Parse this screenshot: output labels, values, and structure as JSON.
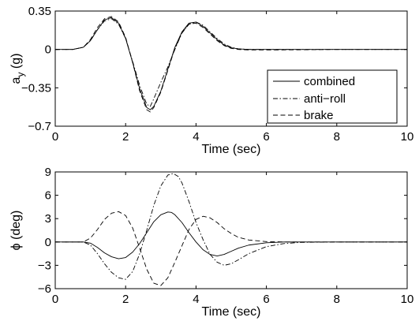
{
  "chart_data": [
    {
      "type": "line",
      "xlabel": "Time (sec)",
      "ylabel_main": "a",
      "ylabel_sub": "y",
      "ylabel_suffix": " (g)",
      "xlim": [
        0,
        10
      ],
      "ylim": [
        -0.7,
        0.35
      ],
      "xticks": [
        0,
        2,
        4,
        6,
        8,
        10
      ],
      "yticks": [
        0.35,
        0,
        -0.35,
        -0.7
      ],
      "ytick_labels": [
        "0.35",
        "0",
        "−0.35",
        "−0.7"
      ],
      "grid": false,
      "legend_position": "lower-right",
      "series": [
        {
          "name": "combined",
          "style": "solid",
          "color": "#000000",
          "x": [
            0,
            0.5,
            0.8,
            1.0,
            1.2,
            1.4,
            1.6,
            1.8,
            2.0,
            2.2,
            2.4,
            2.6,
            2.7,
            2.8,
            3.0,
            3.2,
            3.4,
            3.6,
            3.8,
            4.0,
            4.2,
            4.4,
            4.6,
            4.8,
            5.0,
            5.2,
            5.5,
            6.0,
            7.0,
            8.0,
            10.0
          ],
          "y": [
            0,
            0,
            0.02,
            0.08,
            0.18,
            0.27,
            0.29,
            0.24,
            0.1,
            -0.12,
            -0.36,
            -0.53,
            -0.55,
            -0.52,
            -0.38,
            -0.18,
            0.02,
            0.16,
            0.24,
            0.25,
            0.21,
            0.15,
            0.09,
            0.04,
            0.015,
            0.005,
            0,
            0,
            0,
            0,
            0
          ]
        },
        {
          "name": "anti−roll",
          "style": "dashdot",
          "color": "#000000",
          "x": [
            0,
            0.5,
            0.8,
            1.0,
            1.2,
            1.4,
            1.6,
            1.8,
            2.0,
            2.2,
            2.4,
            2.6,
            2.7,
            2.8,
            3.0,
            3.2,
            3.4,
            3.6,
            3.8,
            4.0,
            4.2,
            4.4,
            4.6,
            4.8,
            5.0,
            5.2,
            5.5,
            6.0,
            7.0,
            8.0,
            10.0
          ],
          "y": [
            0,
            0,
            0.02,
            0.08,
            0.18,
            0.26,
            0.28,
            0.23,
            0.1,
            -0.11,
            -0.33,
            -0.5,
            -0.52,
            -0.45,
            -0.3,
            -0.16,
            0.0,
            0.15,
            0.23,
            0.25,
            0.22,
            0.16,
            0.1,
            0.05,
            0.02,
            0.005,
            0,
            0,
            0,
            0,
            0
          ]
        },
        {
          "name": "brake",
          "style": "dashed",
          "color": "#000000",
          "x": [
            0,
            0.5,
            0.8,
            1.0,
            1.2,
            1.4,
            1.6,
            1.8,
            2.0,
            2.2,
            2.4,
            2.6,
            2.7,
            2.8,
            3.0,
            3.2,
            3.4,
            3.6,
            3.8,
            4.0,
            4.2,
            4.4,
            4.6,
            4.8,
            5.0,
            5.2,
            5.5,
            6.0,
            7.0,
            8.0,
            10.0
          ],
          "y": [
            0,
            0,
            0.02,
            0.09,
            0.2,
            0.28,
            0.3,
            0.25,
            0.11,
            -0.12,
            -0.38,
            -0.55,
            -0.57,
            -0.53,
            -0.39,
            -0.19,
            0.01,
            0.15,
            0.23,
            0.24,
            0.2,
            0.14,
            0.08,
            0.035,
            0.01,
            0.0,
            -0.005,
            -0.005,
            -0.003,
            0,
            0
          ]
        }
      ]
    },
    {
      "type": "line",
      "xlabel": "Time (sec)",
      "ylabel_symbol": "ϕ",
      "ylabel_suffix": " (deg)",
      "xlim": [
        0,
        10
      ],
      "ylim": [
        -6,
        9
      ],
      "xticks": [
        0,
        2,
        4,
        6,
        8,
        10
      ],
      "yticks": [
        9,
        6,
        3,
        0,
        -3,
        -6
      ],
      "ytick_labels": [
        "9",
        "6",
        "3",
        "0",
        "−3",
        "−6"
      ],
      "grid": false,
      "series": [
        {
          "style": "solid",
          "color": "#000000",
          "x": [
            0,
            0.8,
            1.0,
            1.2,
            1.4,
            1.6,
            1.8,
            2.0,
            2.2,
            2.4,
            2.6,
            2.8,
            3.0,
            3.2,
            3.3,
            3.4,
            3.6,
            3.8,
            4.0,
            4.2,
            4.4,
            4.6,
            4.8,
            5.0,
            5.2,
            5.5,
            6.0,
            6.5,
            7.0,
            8.0,
            10.0
          ],
          "y": [
            0,
            0,
            -0.15,
            -0.7,
            -1.4,
            -1.9,
            -2.15,
            -2.0,
            -1.3,
            -0.2,
            1.2,
            2.6,
            3.5,
            3.85,
            3.8,
            3.5,
            2.5,
            1.2,
            0.0,
            -1.0,
            -1.6,
            -1.8,
            -1.6,
            -1.2,
            -0.8,
            -0.4,
            -0.1,
            0,
            0,
            0,
            0
          ]
        },
        {
          "style": "dashdot",
          "color": "#000000",
          "x": [
            0,
            0.8,
            1.0,
            1.2,
            1.4,
            1.6,
            1.8,
            2.0,
            2.2,
            2.4,
            2.6,
            2.8,
            3.0,
            3.2,
            3.35,
            3.5,
            3.6,
            3.8,
            4.0,
            4.2,
            4.4,
            4.6,
            4.8,
            5.0,
            5.2,
            5.5,
            6.0,
            6.5,
            7.0,
            8.0,
            10.0
          ],
          "y": [
            0,
            0,
            -0.4,
            -1.5,
            -2.8,
            -3.9,
            -4.6,
            -4.8,
            -3.8,
            -1.5,
            1.5,
            4.7,
            7.2,
            8.6,
            8.8,
            8.4,
            7.6,
            5.2,
            2.5,
            0.3,
            -1.6,
            -2.6,
            -3.0,
            -2.8,
            -2.3,
            -1.5,
            -0.6,
            -0.2,
            -0.05,
            0,
            0
          ]
        },
        {
          "style": "dashed",
          "color": "#000000",
          "x": [
            0,
            0.8,
            1.0,
            1.2,
            1.4,
            1.6,
            1.8,
            2.0,
            2.2,
            2.4,
            2.6,
            2.8,
            3.0,
            3.2,
            3.4,
            3.6,
            3.8,
            4.0,
            4.2,
            4.4,
            4.6,
            4.8,
            5.0,
            5.2,
            5.5,
            6.0,
            6.5,
            7.0,
            8.0,
            10.0
          ],
          "y": [
            0,
            0,
            0.5,
            1.6,
            2.9,
            3.7,
            3.9,
            3.4,
            1.8,
            -0.8,
            -3.5,
            -5.3,
            -5.6,
            -4.6,
            -2.6,
            -0.5,
            1.6,
            2.9,
            3.3,
            3.1,
            2.5,
            1.7,
            1.1,
            0.6,
            0.25,
            0.05,
            0,
            0,
            0,
            0
          ]
        }
      ]
    }
  ]
}
